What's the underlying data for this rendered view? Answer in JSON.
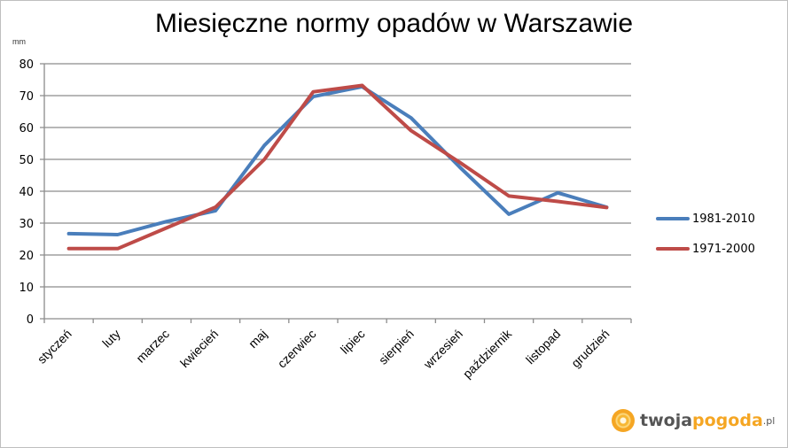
{
  "chart_data": {
    "type": "line",
    "title": "Miesięczne normy opadów w Warszawie",
    "ylabel": "mm",
    "xlabel": "",
    "ylim": [
      0,
      80
    ],
    "yticks": [
      0,
      10,
      20,
      30,
      40,
      50,
      60,
      70,
      80
    ],
    "grid": true,
    "legend_position": "right",
    "categories": [
      "styczeń",
      "luty",
      "marzec",
      "kwiecień",
      "maj",
      "czerwiec",
      "lipiec",
      "sierpień",
      "wrzesień",
      "październik",
      "listopad",
      "grudzień"
    ],
    "series": [
      {
        "name": "1981-2010",
        "color": "#4a7ebb",
        "values": [
          26.7,
          26.4,
          30.5,
          33.9,
          54.4,
          69.7,
          72.8,
          63.0,
          47.5,
          32.8,
          39.5,
          35.0
        ]
      },
      {
        "name": "1971-2000",
        "color": "#be4b48",
        "values": [
          22.0,
          22.0,
          28.5,
          35.0,
          50.0,
          71.2,
          73.2,
          59.0,
          49.0,
          38.5,
          36.8,
          34.9
        ]
      }
    ]
  },
  "logo": {
    "part1": "twoja",
    "part2": "pogoda",
    "part3": ".pl"
  }
}
